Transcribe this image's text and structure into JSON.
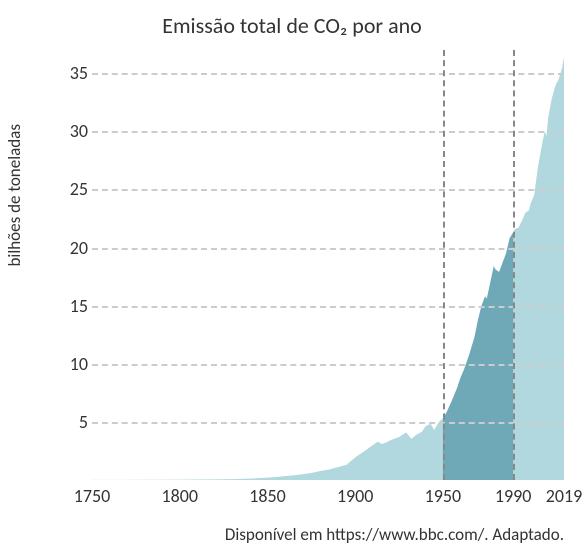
{
  "chart": {
    "type": "area",
    "title": "Emissão total de CO₂ por ano",
    "title_fontsize": 22,
    "y_axis_title": "bilhões de toneladas",
    "y_axis_title_fontsize": 17,
    "caption": "Disponível em https://www.bbc.com/. Adaptado.",
    "caption_fontsize": 17,
    "background_color": "#ffffff",
    "grid_color_h": "#cccccc",
    "grid_color_v": "#888888",
    "grid_dash": true,
    "area_color_light": "#b1d8de",
    "area_color_dark": "#6fa8b6",
    "xlim": [
      1750,
      2019
    ],
    "ylim": [
      0,
      37
    ],
    "x_ticks": [
      1750,
      1800,
      1850,
      1900,
      1950,
      1990,
      2019
    ],
    "y_ticks": [
      5,
      10,
      15,
      20,
      25,
      30,
      35
    ],
    "vertical_markers": [
      1950,
      1990
    ],
    "series": [
      {
        "x": 1750,
        "y": 0.01
      },
      {
        "x": 1760,
        "y": 0.01
      },
      {
        "x": 1770,
        "y": 0.01
      },
      {
        "x": 1780,
        "y": 0.02
      },
      {
        "x": 1790,
        "y": 0.02
      },
      {
        "x": 1800,
        "y": 0.03
      },
      {
        "x": 1810,
        "y": 0.04
      },
      {
        "x": 1820,
        "y": 0.05
      },
      {
        "x": 1830,
        "y": 0.08
      },
      {
        "x": 1840,
        "y": 0.12
      },
      {
        "x": 1850,
        "y": 0.2
      },
      {
        "x": 1855,
        "y": 0.26
      },
      {
        "x": 1860,
        "y": 0.33
      },
      {
        "x": 1865,
        "y": 0.4
      },
      {
        "x": 1870,
        "y": 0.5
      },
      {
        "x": 1875,
        "y": 0.6
      },
      {
        "x": 1880,
        "y": 0.78
      },
      {
        "x": 1885,
        "y": 0.9
      },
      {
        "x": 1890,
        "y": 1.1
      },
      {
        "x": 1895,
        "y": 1.3
      },
      {
        "x": 1900,
        "y": 1.95
      },
      {
        "x": 1905,
        "y": 2.45
      },
      {
        "x": 1910,
        "y": 3.0
      },
      {
        "x": 1913,
        "y": 3.3
      },
      {
        "x": 1915,
        "y": 3.1
      },
      {
        "x": 1918,
        "y": 3.25
      },
      {
        "x": 1920,
        "y": 3.42
      },
      {
        "x": 1925,
        "y": 3.7
      },
      {
        "x": 1929,
        "y": 4.1
      },
      {
        "x": 1932,
        "y": 3.55
      },
      {
        "x": 1935,
        "y": 3.9
      },
      {
        "x": 1938,
        "y": 4.15
      },
      {
        "x": 1940,
        "y": 4.6
      },
      {
        "x": 1943,
        "y": 4.85
      },
      {
        "x": 1945,
        "y": 4.3
      },
      {
        "x": 1948,
        "y": 5.05
      },
      {
        "x": 1950,
        "y": 5.3
      },
      {
        "x": 1952,
        "y": 5.8
      },
      {
        "x": 1955,
        "y": 6.8
      },
      {
        "x": 1958,
        "y": 7.9
      },
      {
        "x": 1960,
        "y": 8.8
      },
      {
        "x": 1962,
        "y": 9.5
      },
      {
        "x": 1965,
        "y": 10.8
      },
      {
        "x": 1968,
        "y": 12.3
      },
      {
        "x": 1970,
        "y": 13.8
      },
      {
        "x": 1972,
        "y": 15.0
      },
      {
        "x": 1974,
        "y": 15.8
      },
      {
        "x": 1975,
        "y": 15.6
      },
      {
        "x": 1977,
        "y": 17.0
      },
      {
        "x": 1979,
        "y": 18.4
      },
      {
        "x": 1980,
        "y": 18.1
      },
      {
        "x": 1982,
        "y": 17.9
      },
      {
        "x": 1984,
        "y": 18.7
      },
      {
        "x": 1986,
        "y": 19.5
      },
      {
        "x": 1988,
        "y": 20.8
      },
      {
        "x": 1990,
        "y": 21.3
      },
      {
        "x": 1991,
        "y": 21.6
      },
      {
        "x": 1993,
        "y": 21.7
      },
      {
        "x": 1995,
        "y": 22.3
      },
      {
        "x": 1997,
        "y": 23.0
      },
      {
        "x": 1999,
        "y": 23.2
      },
      {
        "x": 2000,
        "y": 23.8
      },
      {
        "x": 2002,
        "y": 24.5
      },
      {
        "x": 2004,
        "y": 26.8
      },
      {
        "x": 2006,
        "y": 28.5
      },
      {
        "x": 2008,
        "y": 30.0
      },
      {
        "x": 2009,
        "y": 29.6
      },
      {
        "x": 2010,
        "y": 31.2
      },
      {
        "x": 2012,
        "y": 32.8
      },
      {
        "x": 2014,
        "y": 33.9
      },
      {
        "x": 2016,
        "y": 34.5
      },
      {
        "x": 2018,
        "y": 35.5
      },
      {
        "x": 2019,
        "y": 36.4
      }
    ]
  }
}
